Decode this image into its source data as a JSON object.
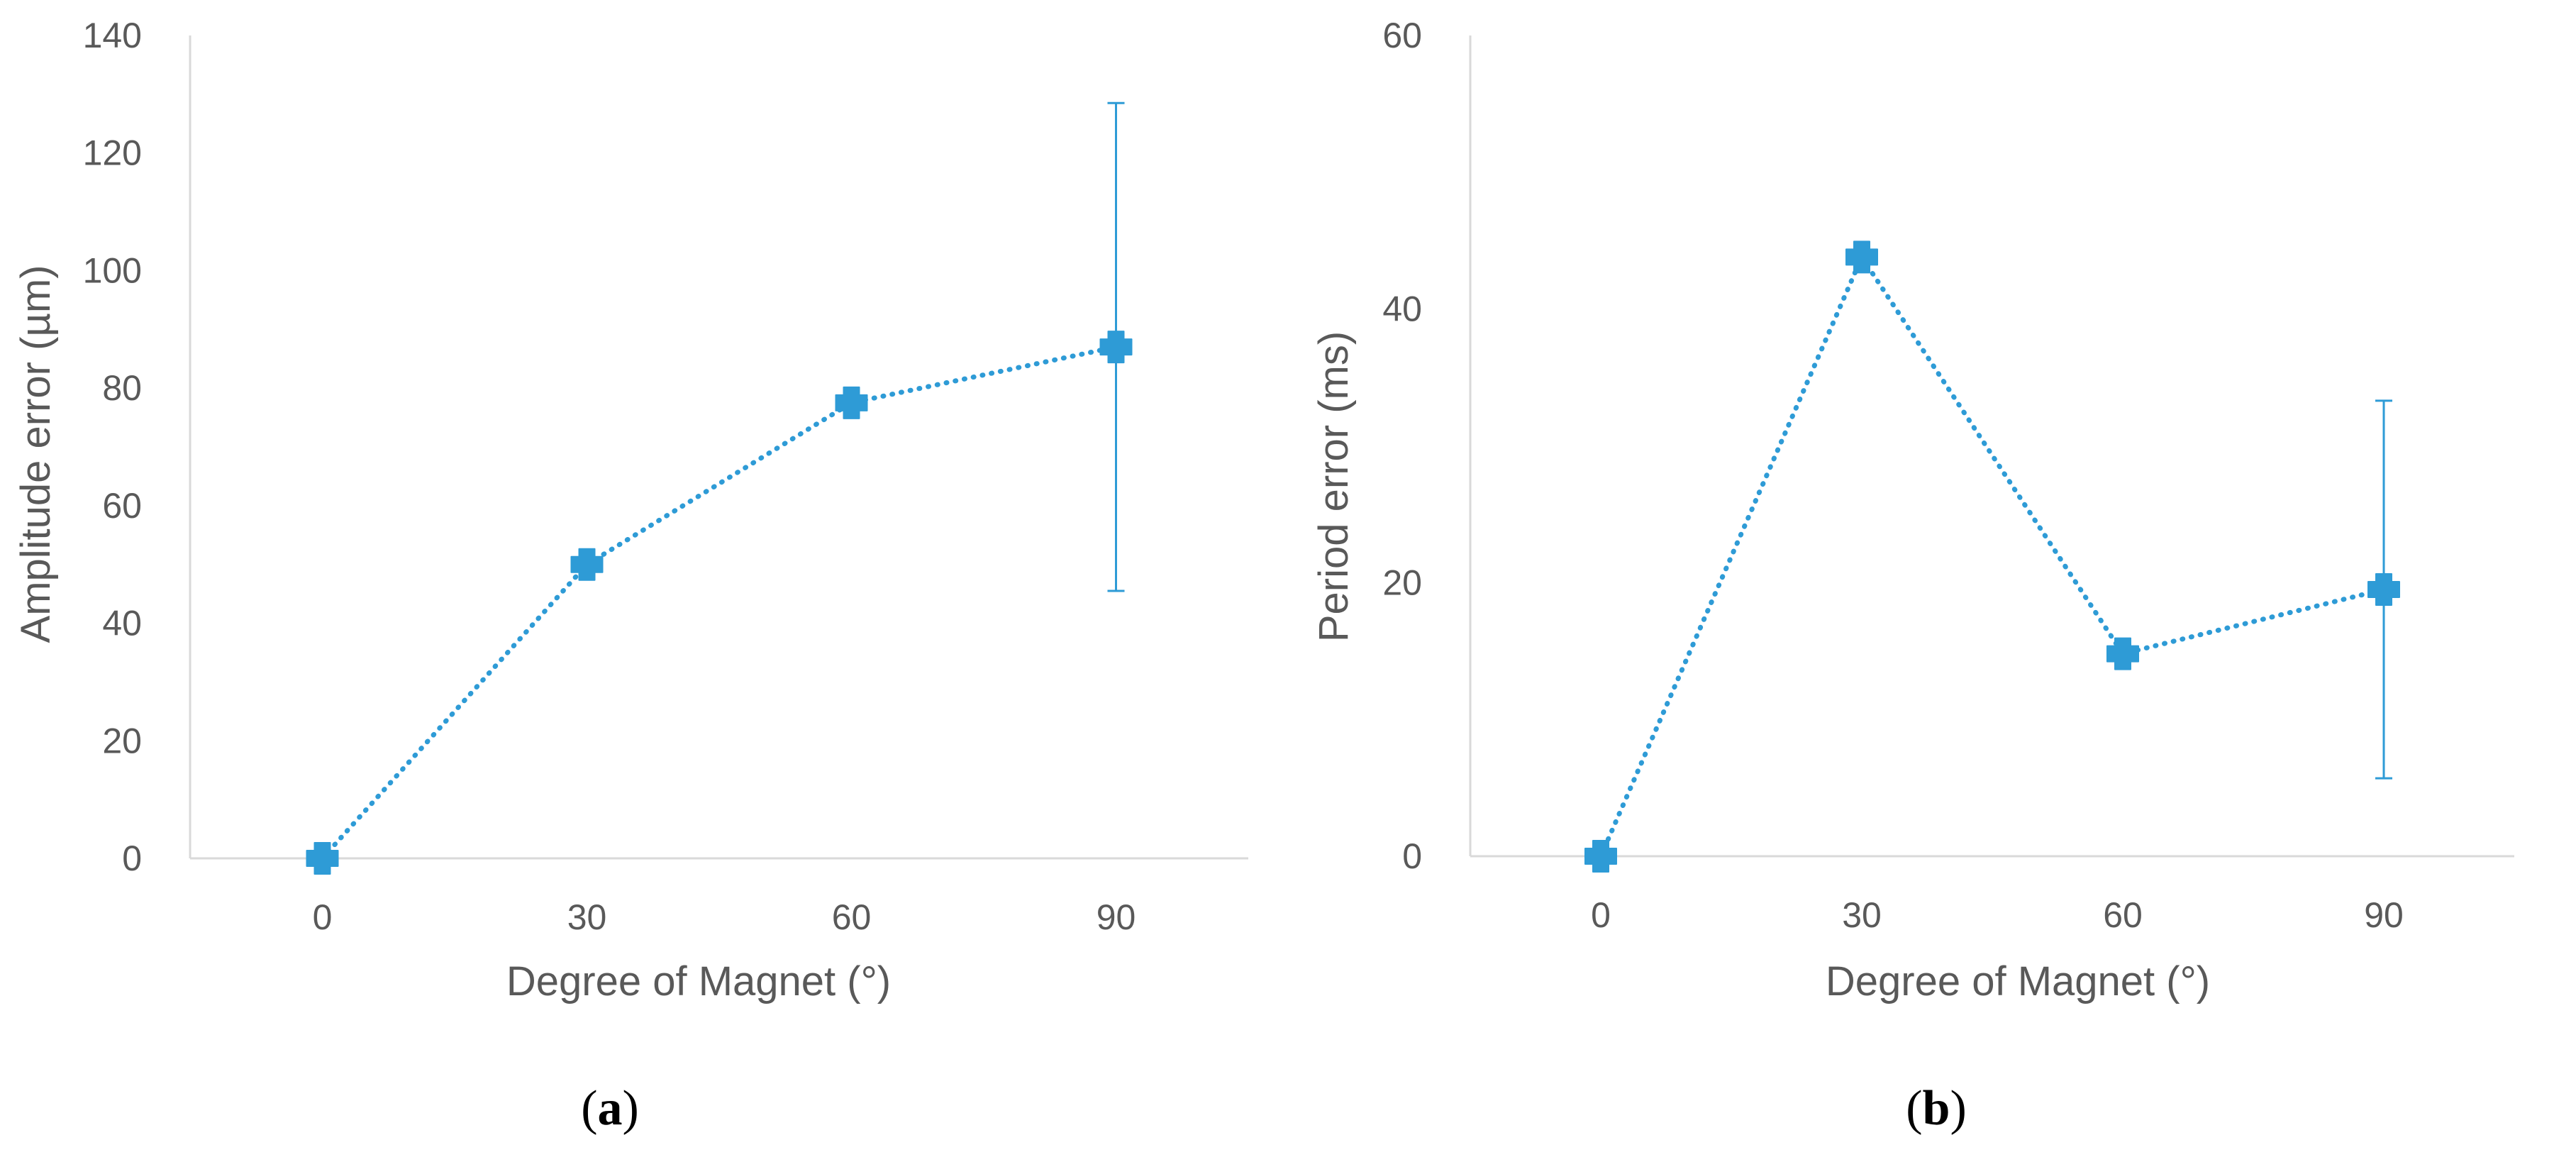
{
  "figure": {
    "panel_labels": [
      {
        "open": "(",
        "letter": "a",
        "close": ")"
      },
      {
        "open": "(",
        "letter": "b",
        "close": ")"
      }
    ]
  },
  "style": {
    "series_color": "#2E9BD6",
    "axis_color": "#D9D9D9",
    "text_color": "#595959",
    "marker": "plus-cross-icon"
  },
  "chart_data": [
    {
      "type": "line",
      "title": "",
      "xlabel": "Degree of Magnet  (°)",
      "ylabel": "Amplitude  error (µm)",
      "categories": [
        "0",
        "30",
        "60",
        "90"
      ],
      "yticks": [
        "0",
        "20",
        "40",
        "60",
        "80",
        "100",
        "120",
        "140"
      ],
      "ylim": [
        0,
        140
      ],
      "grid": false,
      "legend": "none",
      "series": [
        {
          "values": [
            0,
            50,
            77.5,
            87
          ],
          "error_bars": [
            null,
            null,
            null,
            [
              45.5,
              128.5
            ]
          ],
          "line_style": "dotted"
        }
      ]
    },
    {
      "type": "line",
      "title": "",
      "xlabel": "Degree of Magnet  (°)",
      "ylabel": "Period error (ms)",
      "categories": [
        "0",
        "30",
        "60",
        "90"
      ],
      "yticks": [
        "0",
        "20",
        "40",
        "60"
      ],
      "ylim": [
        0,
        60
      ],
      "grid": false,
      "legend": "none",
      "series": [
        {
          "values": [
            0,
            43.8,
            14.8,
            19.5
          ],
          "error_bars": [
            null,
            null,
            null,
            [
              5.7,
              33.3
            ]
          ],
          "line_style": "dotted"
        }
      ]
    }
  ]
}
